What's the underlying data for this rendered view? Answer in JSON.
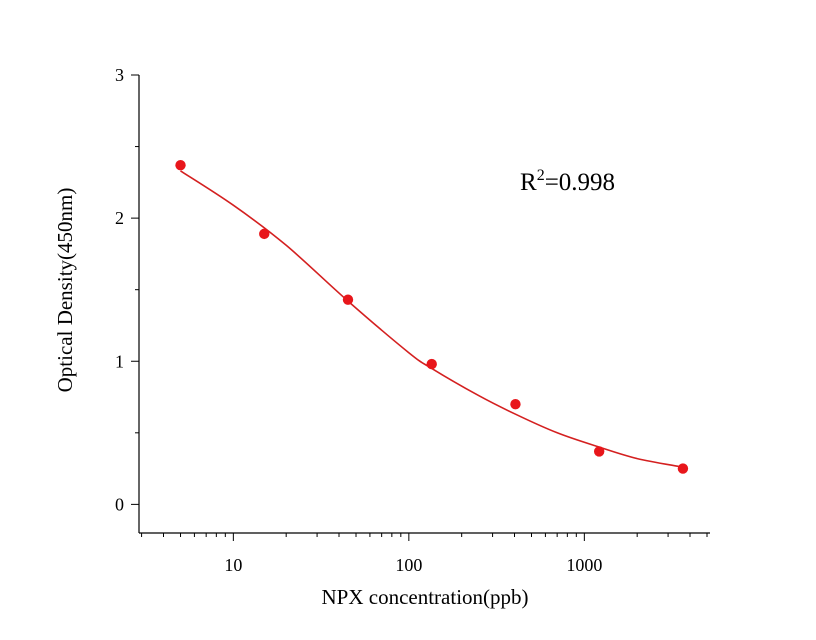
{
  "chart_data": {
    "type": "scatter",
    "title": "",
    "xlabel": "NPX concentration(ppb)",
    "ylabel": "Optical Density(450nm)",
    "x_scale": "log",
    "xlim": [
      2.9,
      5200
    ],
    "ylim": [
      -0.2,
      3
    ],
    "grid": false,
    "legend": "none",
    "x_ticks": [
      {
        "value": 10,
        "label": "10"
      },
      {
        "value": 100,
        "label": "100"
      },
      {
        "value": 1000,
        "label": "1000"
      }
    ],
    "y_ticks": [
      {
        "value": 0,
        "label": "0"
      },
      {
        "value": 1,
        "label": "1"
      },
      {
        "value": 2,
        "label": "2"
      },
      {
        "value": 3,
        "label": "3"
      }
    ],
    "series": [
      {
        "type": "scatter",
        "color": "#e8161b",
        "points": [
          {
            "x": 5,
            "y": 2.37
          },
          {
            "x": 15,
            "y": 1.89
          },
          {
            "x": 45,
            "y": 1.43
          },
          {
            "x": 135,
            "y": 0.98
          },
          {
            "x": 405,
            "y": 0.7
          },
          {
            "x": 1215,
            "y": 0.37
          },
          {
            "x": 3645,
            "y": 0.25
          }
        ]
      },
      {
        "type": "line",
        "color": "#d42020",
        "fit": "four-parameter logistic",
        "points": [
          {
            "x": 5,
            "y": 2.33
          },
          {
            "x": 10,
            "y": 2.09
          },
          {
            "x": 20,
            "y": 1.81
          },
          {
            "x": 45,
            "y": 1.42
          },
          {
            "x": 100,
            "y": 1.06
          },
          {
            "x": 135,
            "y": 0.95
          },
          {
            "x": 250,
            "y": 0.76
          },
          {
            "x": 405,
            "y": 0.63
          },
          {
            "x": 700,
            "y": 0.5
          },
          {
            "x": 1215,
            "y": 0.4
          },
          {
            "x": 2000,
            "y": 0.32
          },
          {
            "x": 3645,
            "y": 0.26
          }
        ]
      }
    ],
    "annotation": {
      "base": "R",
      "sup": "2",
      "value": "=0.998"
    }
  }
}
